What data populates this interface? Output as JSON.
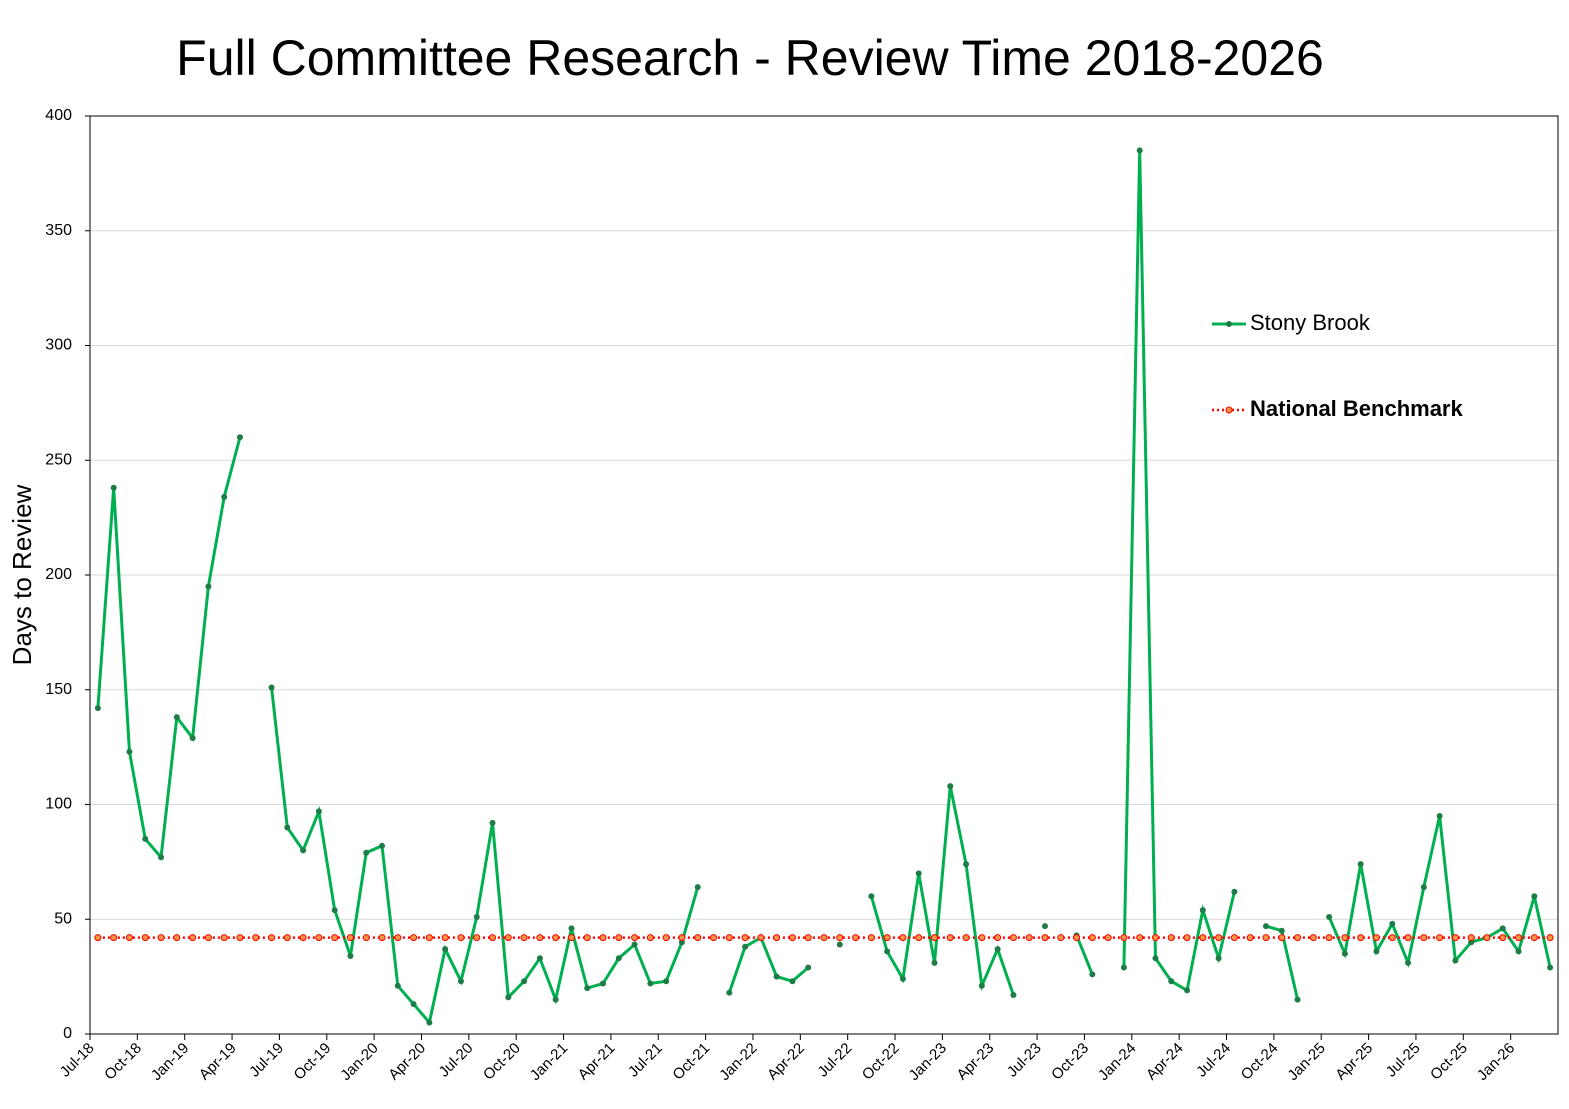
{
  "chart_data": {
    "type": "line",
    "title": "Full Committee Research - Review Time 2018-2026",
    "y_label": "Days to Review",
    "categories": [
      "Jul-18",
      null,
      null,
      "Oct-18",
      null,
      null,
      "Jan-19",
      null,
      null,
      "Apr-19",
      null,
      null,
      "Jul-19",
      null,
      null,
      "Oct-19",
      null,
      null,
      "Jan-20",
      null,
      null,
      "Apr-20",
      null,
      null,
      "Jul-20",
      null,
      null,
      "Oct-20",
      null,
      null,
      "Jan-21",
      null,
      null,
      "Apr-21",
      null,
      null,
      "Jul-21",
      null,
      null,
      "Oct-21",
      null,
      null,
      "Jan-22",
      null,
      null,
      "Apr-22",
      null,
      null,
      "Jul-22",
      null,
      null,
      "Oct-22",
      null,
      null,
      "Jan-23",
      null,
      null,
      "Apr-23",
      null,
      null,
      "Jul-23",
      null,
      null,
      "Oct-23",
      null,
      null,
      "Jan-24",
      null,
      null,
      "Apr-24",
      null,
      null,
      "Jul-24",
      null,
      null,
      "Oct-24",
      null,
      null,
      "Jan-25",
      null,
      null,
      "Apr-25",
      null,
      null,
      "Jul-25",
      null,
      null,
      "Oct-25",
      null,
      null,
      "Jan-26",
      null,
      null
    ],
    "series": [
      {
        "name": "Stony Brook",
        "color": "#00b050",
        "values": [
          142,
          238,
          123,
          85,
          77,
          138,
          129,
          195,
          234,
          260,
          null,
          151,
          90,
          80,
          97,
          54,
          34,
          79,
          82,
          21,
          13,
          5,
          37,
          23,
          51,
          92,
          16,
          23,
          33,
          15,
          46,
          20,
          22,
          33,
          39,
          22,
          23,
          40,
          64,
          null,
          18,
          38,
          42,
          25,
          23,
          29,
          null,
          39,
          null,
          60,
          36,
          24,
          70,
          31,
          108,
          74,
          21,
          37,
          17,
          null,
          47,
          null,
          43,
          26,
          null,
          29,
          385,
          33,
          23,
          19,
          54,
          33,
          62,
          null,
          47,
          45,
          15,
          null,
          51,
          35,
          74,
          36,
          48,
          31,
          64,
          95,
          32,
          40,
          42,
          46,
          36,
          60,
          29
        ]
      },
      {
        "name": "National Benchmark",
        "color": "#ff0000",
        "values": [
          42,
          42,
          42,
          42,
          42,
          42,
          42,
          42,
          42,
          42,
          42,
          42,
          42,
          42,
          42,
          42,
          42,
          42,
          42,
          42,
          42,
          42,
          42,
          42,
          42,
          42,
          42,
          42,
          42,
          42,
          42,
          42,
          42,
          42,
          42,
          42,
          42,
          42,
          42,
          42,
          42,
          42,
          42,
          42,
          42,
          42,
          42,
          42,
          42,
          42,
          42,
          42,
          42,
          42,
          42,
          42,
          42,
          42,
          42,
          42,
          42,
          42,
          42,
          42,
          42,
          42,
          42,
          42,
          42,
          42,
          42,
          42,
          42,
          42,
          42,
          42,
          42,
          42,
          42,
          42,
          42,
          42,
          42,
          42,
          42,
          42,
          42,
          42,
          42,
          42,
          42,
          42,
          42
        ]
      }
    ],
    "ylim": [
      0,
      400
    ],
    "yticks": [
      0,
      50,
      100,
      150,
      200,
      250,
      300,
      350,
      400
    ],
    "grid": true
  }
}
